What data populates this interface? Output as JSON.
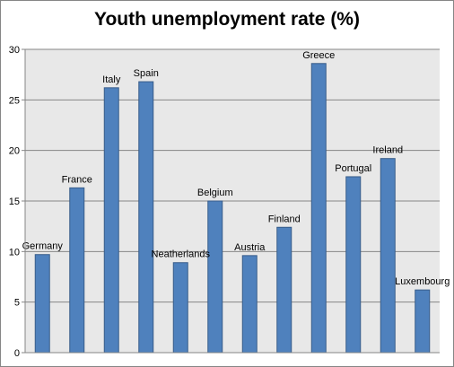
{
  "chart_data": {
    "type": "bar",
    "title": "Youth unemployment rate (%)",
    "categories": [
      "Germany",
      "France",
      "Italy",
      "Spain",
      "Neatherlands",
      "Belgium",
      "Austria",
      "Finland",
      "Greece",
      "Portugal",
      "Ireland",
      "Luxembourg"
    ],
    "values": [
      9.7,
      16.3,
      26.2,
      26.8,
      8.9,
      15.0,
      9.6,
      12.4,
      28.6,
      17.4,
      19.2,
      6.2
    ],
    "xlabel": "",
    "ylabel": "",
    "ylim": [
      0,
      30
    ],
    "yticks": [
      "0",
      "5",
      "10",
      "15",
      "20",
      "25",
      "30"
    ],
    "grid": true,
    "legend": "none",
    "colors": {
      "bar_fill": "#4F81BD",
      "bar_stroke": "#385D8A",
      "plot_background": "#E8E8E8",
      "gridline": "#868686"
    }
  }
}
